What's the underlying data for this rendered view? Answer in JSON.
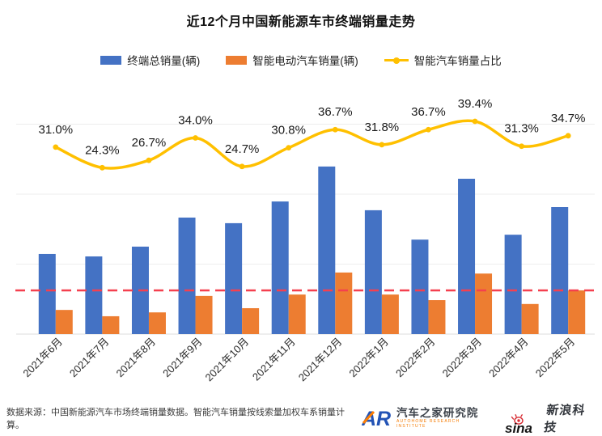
{
  "header": {
    "title": "近12个月中国新能源车市终端销量走势"
  },
  "legend": [
    {
      "label": "终端总销量(辆)",
      "color": "#4472C4",
      "marker": "square"
    },
    {
      "label": "智能电动汽车销量(辆)",
      "color": "#ED7D31",
      "marker": "square"
    },
    {
      "label": "智能汽车销量占比",
      "color": "#FFC000",
      "marker": "line-dot"
    }
  ],
  "chart_data": {
    "type": "bar+line",
    "title": "近12个月中国新能源车市终端销量走势",
    "categories": [
      "2021年6月",
      "2021年7月",
      "2021年8月",
      "2021年9月",
      "2021年10月",
      "2021年11月",
      "2021年12月",
      "2022年1月",
      "2022年2月",
      "2022年3月",
      "2022年4月",
      "2022年5月"
    ],
    "series": [
      {
        "name": "终端总销量(辆)",
        "type": "bar",
        "unit": "辆",
        "color": "#4472C4",
        "values": [
          229000,
          222000,
          250000,
          333000,
          317000,
          379000,
          479000,
          354000,
          270000,
          444000,
          284000,
          363000
        ]
      },
      {
        "name": "智能电动汽车销量(辆)",
        "type": "bar",
        "unit": "辆",
        "color": "#ED7D31",
        "values": [
          69000,
          51000,
          62000,
          109000,
          74000,
          113000,
          176000,
          113000,
          97000,
          173000,
          86000,
          125000
        ]
      },
      {
        "name": "智能汽车销量占比",
        "type": "line",
        "unit": "%",
        "color": "#FFC000",
        "data_labels": true,
        "values": [
          31.0,
          24.3,
          26.7,
          34.0,
          24.7,
          30.8,
          36.7,
          31.8,
          36.7,
          39.4,
          31.3,
          34.7
        ]
      }
    ],
    "reference_line": {
      "value": 125000,
      "color": "#F4404F",
      "style": "dashed"
    },
    "value_axis": {
      "min": 0,
      "gridline_step": 200000,
      "labels_visible": false
    },
    "percent_axis": {
      "labels_visible": false
    },
    "grid": true,
    "legend_position": "top"
  },
  "footer": {
    "source_note": "数据来源：中国新能源汽车市场终端销量数据。智能汽车销量按线索量加权车系销量计算。",
    "logos": {
      "autohome": {
        "mark": "AR",
        "name": "汽车之家研究院",
        "subtitle": "AUTOHOME RESEARCH INSTITUTE"
      },
      "sina": {
        "mark": "sina",
        "name": "新浪科技"
      }
    }
  }
}
